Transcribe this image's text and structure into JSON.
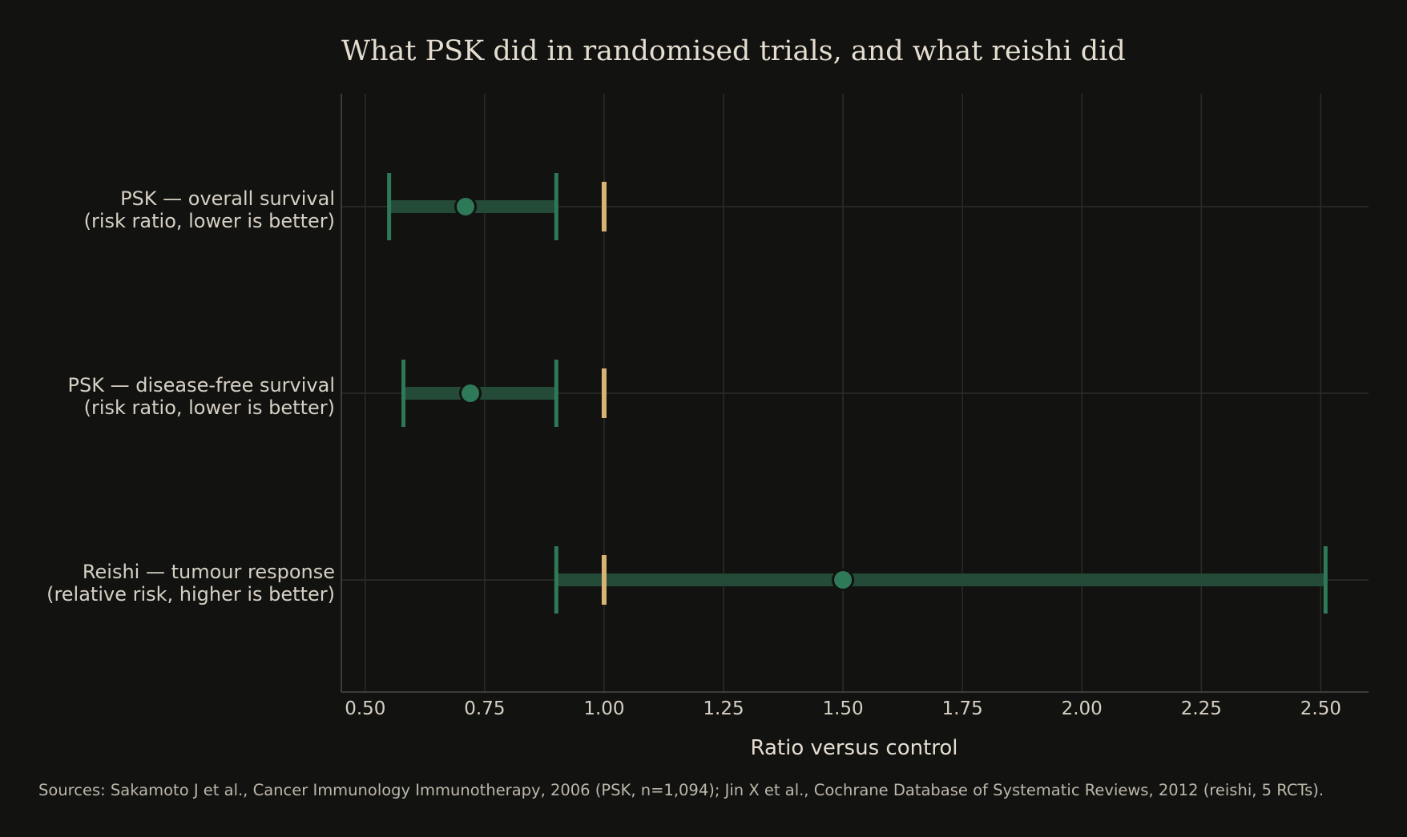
{
  "chart_data": {
    "type": "forest",
    "title": "What PSK did in randomised trials, and what reishi did",
    "xlabel": "Ratio versus control",
    "xlim": [
      0.45,
      2.6
    ],
    "xticks": [
      0.5,
      0.75,
      1.0,
      1.25,
      1.5,
      1.75,
      2.0,
      2.25,
      2.5
    ],
    "xtick_labels": [
      "0.50",
      "0.75",
      "1.00",
      "1.25",
      "1.50",
      "1.75",
      "2.00",
      "2.25",
      "2.50"
    ],
    "reference_value": 1.0,
    "grid": true,
    "rows": [
      {
        "label_line1": "PSK — overall survival",
        "label_line2": "(risk ratio, lower is better)",
        "estimate": 0.71,
        "ci_low": 0.55,
        "ci_high": 0.9
      },
      {
        "label_line1": "PSK — disease-free survival",
        "label_line2": "(risk ratio, lower is better)",
        "estimate": 0.72,
        "ci_low": 0.58,
        "ci_high": 0.9
      },
      {
        "label_line1": "Reishi — tumour response",
        "label_line2": "(relative risk, higher is better)",
        "estimate": 1.5,
        "ci_low": 0.9,
        "ci_high": 2.51
      }
    ],
    "source": "Sources: Sakamoto J et al., Cancer Immunology Immunotherapy, 2006 (PSK, n=1,094); Jin X et al., Cochrane Database of Systematic Reviews, 2012 (reishi, 5 RCTs).",
    "colors": {
      "background": "#121210",
      "interval": "#2e7a58",
      "interval_band": "#244a38",
      "reference": "#d9b374",
      "grid": "#2c2c28",
      "axis": "#4a4a45",
      "text": "#d6d0c4"
    }
  }
}
